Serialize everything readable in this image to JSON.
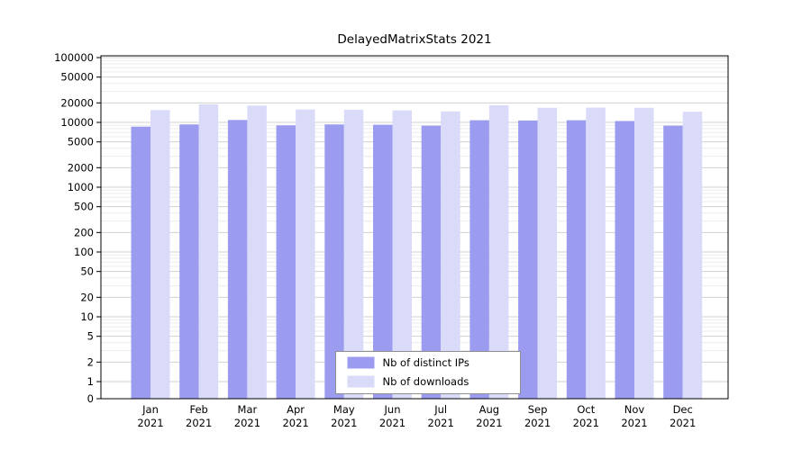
{
  "chart_data": {
    "type": "bar",
    "title": "DelayedMatrixStats 2021",
    "categories": [
      "Jan",
      "Feb",
      "Mar",
      "Apr",
      "May",
      "Jun",
      "Jul",
      "Aug",
      "Sep",
      "Oct",
      "Nov",
      "Dec"
    ],
    "year_label": "2021",
    "series": [
      {
        "name": "Nb of distinct IPs",
        "color": "#9b9bef",
        "values": [
          8600,
          9300,
          10900,
          9000,
          9300,
          9200,
          8900,
          10800,
          10700,
          10800,
          10500,
          8900
        ]
      },
      {
        "name": "Nb of downloads",
        "color": "#dadbf8",
        "values": [
          15500,
          19000,
          18200,
          15800,
          15700,
          15300,
          14800,
          18400,
          16800,
          16900,
          16800,
          14600
        ]
      }
    ],
    "yscale": "log",
    "yticks": [
      0,
      1,
      2,
      5,
      10,
      20,
      50,
      100,
      200,
      500,
      1000,
      2000,
      5000,
      10000,
      20000,
      50000,
      100000
    ],
    "ylim": [
      0,
      100000
    ],
    "grid": true,
    "legend_position": "bottom-center",
    "colors": {
      "axis": "#000000",
      "grid_major": "#d0d0d0",
      "grid_minor": "#ebebeb",
      "legend_border": "#8f8f8f",
      "text": "#000000"
    }
  }
}
